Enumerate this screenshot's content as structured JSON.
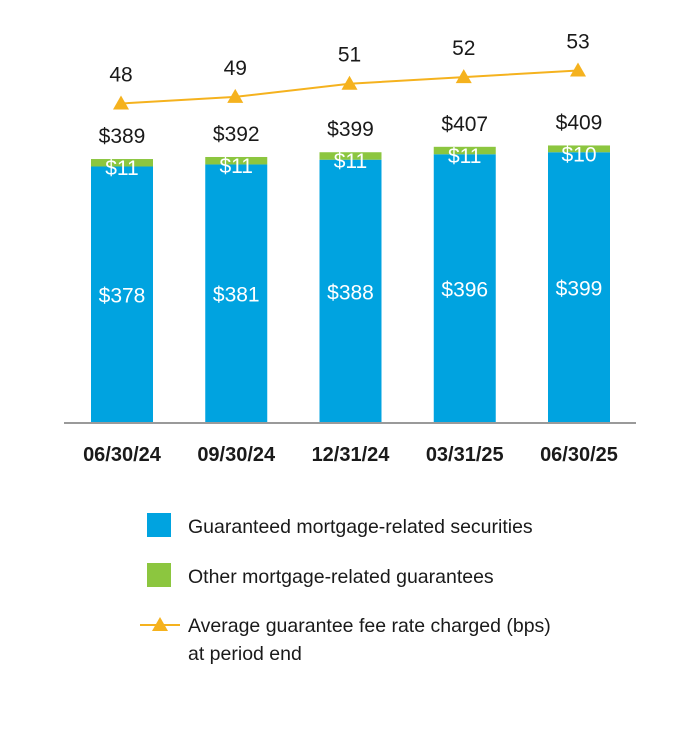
{
  "chart_data": {
    "type": "bar",
    "stacked": true,
    "categories": [
      "06/30/24",
      "09/30/24",
      "12/31/24",
      "03/31/25",
      "06/30/25"
    ],
    "series": [
      {
        "name": "Guaranteed mortgage-related securities",
        "color": "#00a3e0",
        "values": [
          378,
          381,
          388,
          396,
          399
        ],
        "labels": [
          "$378",
          "$381",
          "$388",
          "$396",
          "$399"
        ]
      },
      {
        "name": "Other mortgage-related guarantees",
        "color": "#8cc63f",
        "values": [
          11,
          11,
          11,
          11,
          10
        ],
        "labels": [
          "$11",
          "$11",
          "$11",
          "$11",
          "$10"
        ]
      }
    ],
    "totals": [
      389,
      392,
      399,
      407,
      409
    ],
    "total_labels": [
      "$389",
      "$392",
      "$399",
      "$407",
      "$409"
    ],
    "line_series": {
      "name": "Average guarantee fee rate charged (bps) at period end",
      "name_lines": [
        "Average guarantee fee rate charged (bps)",
        "at period end"
      ],
      "color": "#f5b21e",
      "values": [
        48,
        49,
        51,
        52,
        53
      ],
      "labels": [
        "48",
        "49",
        "51",
        "52",
        "53"
      ]
    },
    "ylim": [
      0,
      415
    ],
    "grid": false,
    "legend_position": "bottom"
  }
}
